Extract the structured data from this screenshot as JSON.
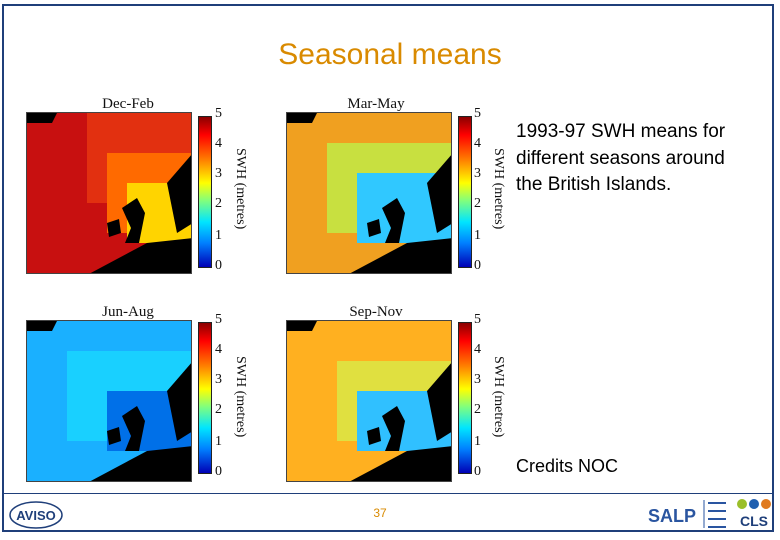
{
  "slide": {
    "title": "Seasonal means",
    "description": "1993-97 SWH means for different seasons around the British Islands.",
    "credits": "Credits NOC",
    "page_number": "37"
  },
  "colorbar": {
    "label": "SWH (metres)",
    "ticks": [
      "5",
      "4",
      "3",
      "2",
      "1",
      "0"
    ]
  },
  "panels": [
    {
      "title": "Dec-Feb",
      "sea_color": "#c81010",
      "near_color": "#ff6a00",
      "coast_color": "#ffd400"
    },
    {
      "title": "Mar-May",
      "sea_color": "#f0a020",
      "near_color": "#c8e040",
      "coast_color": "#30c8ff"
    },
    {
      "title": "Jun-Aug",
      "sea_color": "#1ab0ff",
      "near_color": "#19d0ff",
      "coast_color": "#0070e8"
    },
    {
      "title": "Sep-Nov",
      "sea_color": "#ffb020",
      "near_color": "#e0e040",
      "coast_color": "#30c0ff"
    }
  ],
  "logos": {
    "left": "AVISO",
    "right_a": "SALP",
    "right_b": "CLS"
  },
  "colors": {
    "title": "#d98a00",
    "frame": "#1f3f7a",
    "land": "#000000"
  }
}
